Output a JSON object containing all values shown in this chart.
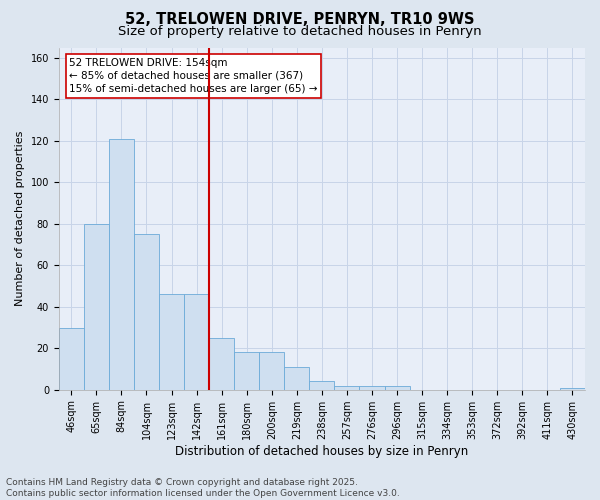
{
  "title1": "52, TRELOWEN DRIVE, PENRYN, TR10 9WS",
  "title2": "Size of property relative to detached houses in Penryn",
  "xlabel": "Distribution of detached houses by size in Penryn",
  "ylabel": "Number of detached properties",
  "categories": [
    "46sqm",
    "65sqm",
    "84sqm",
    "104sqm",
    "123sqm",
    "142sqm",
    "161sqm",
    "180sqm",
    "200sqm",
    "219sqm",
    "238sqm",
    "257sqm",
    "276sqm",
    "296sqm",
    "315sqm",
    "334sqm",
    "353sqm",
    "372sqm",
    "392sqm",
    "411sqm",
    "430sqm"
  ],
  "values": [
    30,
    80,
    121,
    75,
    46,
    46,
    25,
    18,
    18,
    11,
    4,
    2,
    2,
    2,
    0,
    0,
    0,
    0,
    0,
    0,
    1
  ],
  "bar_color": "#cfdff0",
  "bar_edge_color": "#6baad8",
  "vline_pos": 6.0,
  "vline_color": "#cc0000",
  "annotation_text": "52 TRELOWEN DRIVE: 154sqm\n← 85% of detached houses are smaller (367)\n15% of semi-detached houses are larger (65) →",
  "annotation_box_facecolor": "#ffffff",
  "annotation_box_edgecolor": "#cc0000",
  "ylim": [
    0,
    165
  ],
  "yticks": [
    0,
    20,
    40,
    60,
    80,
    100,
    120,
    140,
    160
  ],
  "bg_color": "#dde6f0",
  "plot_bg_color": "#e8eef8",
  "grid_color": "#c8d4e8",
  "footer_text": "Contains HM Land Registry data © Crown copyright and database right 2025.\nContains public sector information licensed under the Open Government Licence v3.0.",
  "title1_fontsize": 10.5,
  "title2_fontsize": 9.5,
  "xlabel_fontsize": 8.5,
  "ylabel_fontsize": 8,
  "tick_fontsize": 7,
  "annotation_fontsize": 7.5,
  "footer_fontsize": 6.5
}
